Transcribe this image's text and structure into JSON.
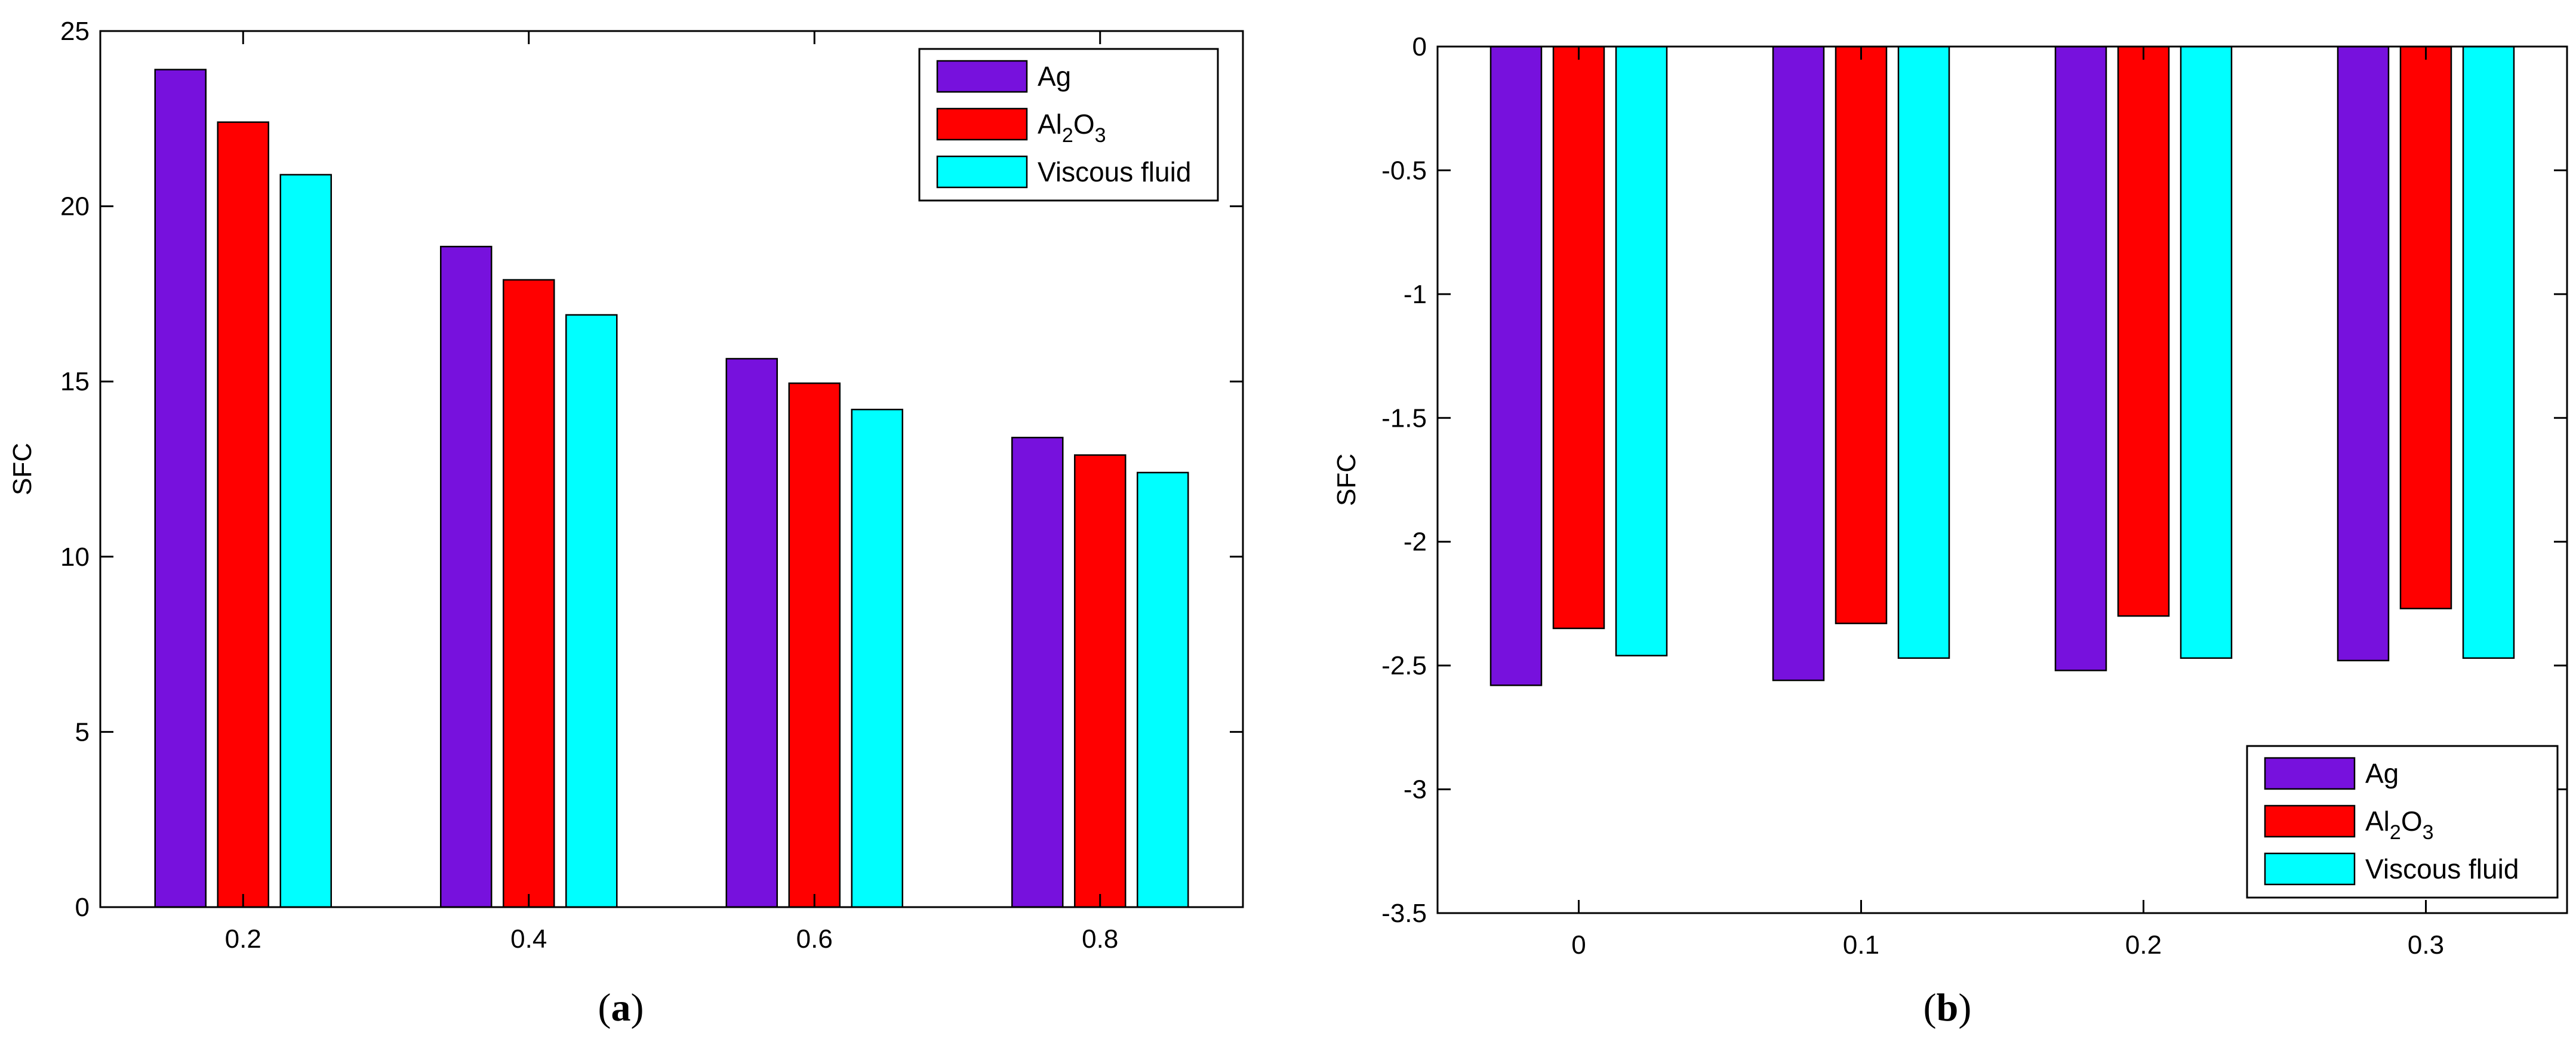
{
  "chart_data": [
    {
      "type": "bar",
      "panel_label": "a",
      "categories": [
        "0.2",
        "0.4",
        "0.6",
        "0.8"
      ],
      "series": [
        {
          "name": "Ag",
          "base": "Ag",
          "sub": "",
          "color": "#7711DD",
          "values": [
            23.9,
            18.85,
            15.65,
            13.4
          ]
        },
        {
          "name": "Al2O3",
          "base": "Al",
          "sub": "2",
          "after": "O",
          "sub2": "3",
          "color": "#FF0000",
          "values": [
            22.4,
            17.9,
            14.95,
            12.9
          ]
        },
        {
          "name": "Viscous fluid",
          "base": "Viscous fluid",
          "sub": "",
          "color": "#00FFFF",
          "values": [
            20.9,
            16.9,
            14.2,
            12.4
          ]
        }
      ],
      "ylabel": "SFC",
      "xlabel": "",
      "ylim": [
        0,
        25
      ],
      "yticks": [
        "0",
        "5",
        "10",
        "15",
        "20",
        "25"
      ],
      "ytick_values": [
        0,
        5,
        10,
        15,
        20,
        25
      ],
      "legend": "top-right"
    },
    {
      "type": "bar",
      "panel_label": "b",
      "categories": [
        "0",
        "0.1",
        "0.2",
        "0.3"
      ],
      "series": [
        {
          "name": "Ag",
          "base": "Ag",
          "sub": "",
          "color": "#7711DD",
          "values": [
            -2.58,
            -2.56,
            -2.52,
            -2.48
          ]
        },
        {
          "name": "Al2O3",
          "base": "Al",
          "sub": "2",
          "after": "O",
          "sub2": "3",
          "color": "#FF0000",
          "values": [
            -2.35,
            -2.33,
            -2.3,
            -2.27
          ]
        },
        {
          "name": "Viscous fluid",
          "base": "Viscous fluid",
          "sub": "",
          "color": "#00FFFF",
          "values": [
            -2.46,
            -2.47,
            -2.47,
            -2.47
          ]
        }
      ],
      "ylabel": "SFC",
      "xlabel": "",
      "ylim": [
        -3.5,
        0
      ],
      "yticks": [
        "-3.5",
        "-3",
        "-2.5",
        "-2",
        "-1.5",
        "-1",
        "-0.5",
        "0"
      ],
      "ytick_values": [
        -3.5,
        -3,
        -2.5,
        -2,
        -1.5,
        -1,
        -0.5,
        0
      ],
      "legend": "bottom-right"
    }
  ]
}
